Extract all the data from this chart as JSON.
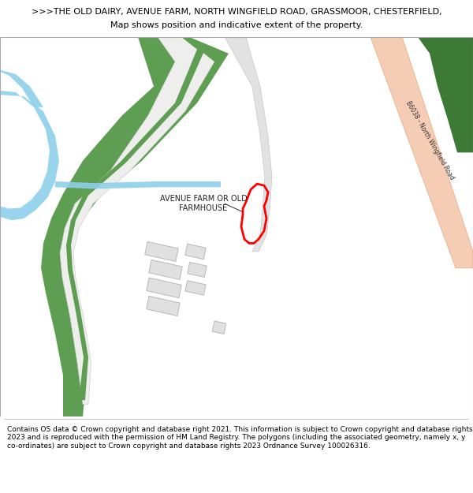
{
  "title_line1": ">>>THE OLD DAIRY, AVENUE FARM, NORTH WINGFIELD ROAD, GRASSMOOR, CHESTERFIELD,",
  "title_line2": "Map shows position and indicative extent of the property.",
  "footer_text": "Contains OS data © Crown copyright and database right 2021. This information is subject to Crown copyright and database rights 2023 and is reproduced with the permission of HM Land Registry. The polygons (including the associated geometry, namely x, y co-ordinates) are subject to Crown copyright and database rights 2023 Ordnance Survey 100026316.",
  "bg_color": "#ffffff",
  "map_bg": "#f7f6f1",
  "road_color_main": "#f5cdb4",
  "green_color": "#5e9e52",
  "dark_green_color": "#3d7a35",
  "water_color": "#8dd0ea",
  "building_color": "#e0e0e0",
  "building_edge": "#b8b8b8",
  "plot_outline_color": "#ff0000",
  "label_farm": "AVENUE FARM OR OLD\nFARMHOUSE",
  "road_label": "B6038 - North Wingfield Road",
  "title_fontsize": 8.0,
  "footer_fontsize": 6.5
}
